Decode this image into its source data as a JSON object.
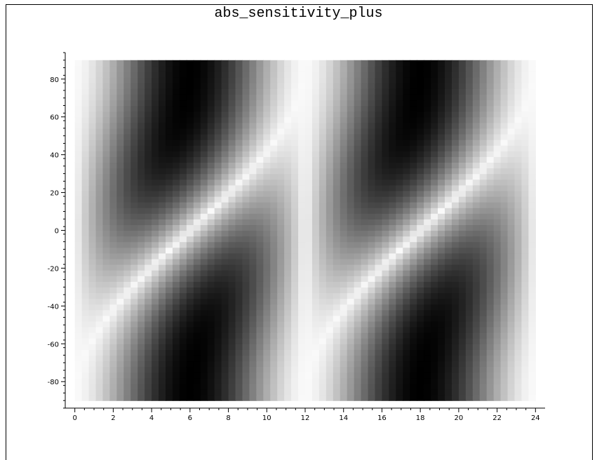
{
  "title": "abs_sensitivity_plus",
  "chart_data": {
    "type": "heatmap",
    "title": "abs_sensitivity_plus",
    "xlabel": "",
    "ylabel": "",
    "xlim": [
      -0.5,
      24.5
    ],
    "ylim": [
      -94,
      94
    ],
    "x_ticks": [
      0,
      2,
      4,
      6,
      8,
      10,
      12,
      14,
      16,
      18,
      20,
      22,
      24
    ],
    "y_ticks": [
      -80,
      -60,
      -40,
      -20,
      0,
      20,
      40,
      60,
      80
    ],
    "x_range": [
      0,
      24
    ],
    "y_range": [
      -90,
      90
    ],
    "colormap": "grayscale (white = low, black = high)",
    "pattern": "abs(sin(pi*x/12)) * abs(sin(pi*(x+6)/12 - (pi/2)*sin(pi*y/180)))",
    "grid": false,
    "legend": "none"
  }
}
